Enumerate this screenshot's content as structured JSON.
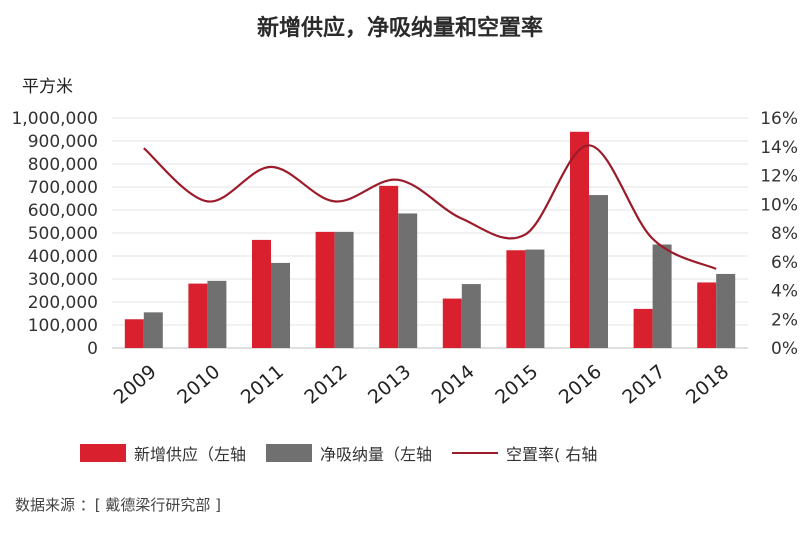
{
  "title": "新增供应，净吸纳量和空置率",
  "unit_label": "平方米",
  "source": "数据来源 ：[ 戴德梁行研究部 ]",
  "colors": {
    "supply": "#d8202f",
    "absorption": "#707070",
    "vacancy": "#9b1b2a"
  },
  "chart_data": {
    "type": "bar",
    "title": "新增供应，净吸纳量和空置率",
    "categories": [
      "2009",
      "2010",
      "2011",
      "2012",
      "2013",
      "2014",
      "2015",
      "2016",
      "2017",
      "2018"
    ],
    "series": [
      {
        "name": "新增供应（左轴",
        "axis": "left",
        "kind": "bar",
        "values": [
          125000,
          280000,
          470000,
          505000,
          705000,
          215000,
          425000,
          940000,
          170000,
          285000
        ]
      },
      {
        "name": "净吸纳量（左轴",
        "axis": "left",
        "kind": "bar",
        "values": [
          155000,
          292000,
          370000,
          505000,
          585000,
          278000,
          428000,
          665000,
          450000,
          322000
        ]
      },
      {
        "name": "空置率( 右轴",
        "axis": "right",
        "kind": "line",
        "values": [
          13.9,
          10.2,
          12.6,
          10.2,
          11.7,
          9.0,
          7.9,
          14.1,
          7.6,
          5.5
        ]
      }
    ],
    "ylim_left": [
      0,
      1000000
    ],
    "ylim_right": [
      0,
      16
    ],
    "y_ticks_left": [
      "0",
      "100,000",
      "200,000",
      "300,000",
      "400,000",
      "500,000",
      "600,000",
      "700,000",
      "800,000",
      "900,000",
      "1,000,000"
    ],
    "y_ticks_right": [
      "0%",
      "2%",
      "4%",
      "6%",
      "8%",
      "10%",
      "12%",
      "14%",
      "16%"
    ],
    "grid": true,
    "legend_position": "bottom"
  }
}
